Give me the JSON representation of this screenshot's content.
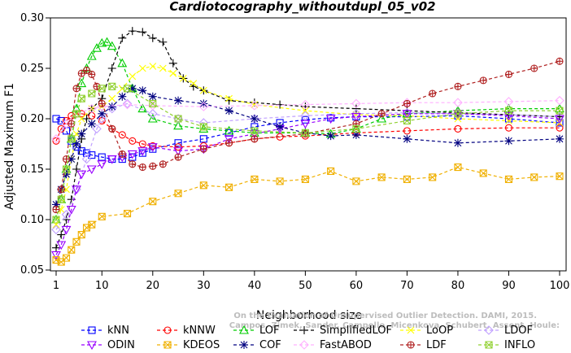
{
  "chart_data": {
    "type": "line",
    "title": "Cardiotocography_withoutdupl_05_v02",
    "xlabel": "Neighborhood size",
    "ylabel": "Adjusted Maximum F1",
    "xlim": [
      1,
      100
    ],
    "ylim": [
      0.05,
      0.3
    ],
    "xticks": [
      "1",
      "10",
      "20",
      "30",
      "40",
      "50",
      "60",
      "70",
      "80",
      "90",
      "100"
    ],
    "yticks": [
      "0.05",
      "0.10",
      "0.15",
      "0.20",
      "0.25",
      "0.30"
    ],
    "legend_placement": "bottom",
    "series": [
      {
        "name": "kNN",
        "color": "#0000ff",
        "marker": "square",
        "points": [
          [
            1,
            0.2
          ],
          [
            2,
            0.198
          ],
          [
            3,
            0.188
          ],
          [
            4,
            0.178
          ],
          [
            5,
            0.172
          ],
          [
            6,
            0.168
          ],
          [
            7,
            0.166
          ],
          [
            8,
            0.164
          ],
          [
            10,
            0.162
          ],
          [
            12,
            0.16
          ],
          [
            14,
            0.16
          ],
          [
            16,
            0.162
          ],
          [
            18,
            0.166
          ],
          [
            20,
            0.17
          ],
          [
            25,
            0.176
          ],
          [
            30,
            0.18
          ],
          [
            35,
            0.186
          ],
          [
            40,
            0.192
          ],
          [
            45,
            0.196
          ],
          [
            50,
            0.199
          ],
          [
            55,
            0.201
          ],
          [
            60,
            0.202
          ],
          [
            70,
            0.202
          ],
          [
            80,
            0.203
          ],
          [
            90,
            0.2
          ],
          [
            100,
            0.196
          ]
        ]
      },
      {
        "name": "kNNW",
        "color": "#ff0000",
        "marker": "circle",
        "points": [
          [
            1,
            0.178
          ],
          [
            2,
            0.19
          ],
          [
            3,
            0.198
          ],
          [
            4,
            0.203
          ],
          [
            5,
            0.205
          ],
          [
            6,
            0.205
          ],
          [
            8,
            0.203
          ],
          [
            10,
            0.198
          ],
          [
            12,
            0.19
          ],
          [
            14,
            0.184
          ],
          [
            16,
            0.178
          ],
          [
            18,
            0.175
          ],
          [
            20,
            0.173
          ],
          [
            25,
            0.172
          ],
          [
            30,
            0.173
          ],
          [
            35,
            0.176
          ],
          [
            40,
            0.18
          ],
          [
            45,
            0.182
          ],
          [
            50,
            0.183
          ],
          [
            60,
            0.186
          ],
          [
            70,
            0.188
          ],
          [
            80,
            0.19
          ],
          [
            90,
            0.191
          ],
          [
            100,
            0.191
          ]
        ]
      },
      {
        "name": "LOF",
        "color": "#00cc00",
        "marker": "triangle",
        "points": [
          [
            1,
            0.1
          ],
          [
            2,
            0.12
          ],
          [
            3,
            0.15
          ],
          [
            4,
            0.18
          ],
          [
            5,
            0.21
          ],
          [
            6,
            0.235
          ],
          [
            7,
            0.25
          ],
          [
            8,
            0.262
          ],
          [
            9,
            0.27
          ],
          [
            10,
            0.275
          ],
          [
            11,
            0.276
          ],
          [
            12,
            0.272
          ],
          [
            14,
            0.255
          ],
          [
            16,
            0.23
          ],
          [
            18,
            0.21
          ],
          [
            20,
            0.2
          ],
          [
            25,
            0.193
          ],
          [
            30,
            0.19
          ],
          [
            35,
            0.188
          ],
          [
            40,
            0.186
          ],
          [
            50,
            0.186
          ],
          [
            55,
            0.185
          ],
          [
            60,
            0.19
          ],
          [
            65,
            0.2
          ],
          [
            70,
            0.205
          ],
          [
            80,
            0.208
          ],
          [
            90,
            0.21
          ],
          [
            100,
            0.21
          ]
        ]
      },
      {
        "name": "SimplifiedLOF",
        "color": "#000000",
        "marker": "plus",
        "points": [
          [
            1,
            0.072
          ],
          [
            2,
            0.085
          ],
          [
            3,
            0.1
          ],
          [
            4,
            0.12
          ],
          [
            5,
            0.15
          ],
          [
            6,
            0.18
          ],
          [
            7,
            0.2
          ],
          [
            8,
            0.21
          ],
          [
            10,
            0.22
          ],
          [
            12,
            0.25
          ],
          [
            14,
            0.28
          ],
          [
            16,
            0.287
          ],
          [
            18,
            0.286
          ],
          [
            20,
            0.28
          ],
          [
            22,
            0.276
          ],
          [
            24,
            0.255
          ],
          [
            26,
            0.24
          ],
          [
            28,
            0.232
          ],
          [
            30,
            0.228
          ],
          [
            35,
            0.218
          ],
          [
            40,
            0.216
          ],
          [
            45,
            0.214
          ],
          [
            50,
            0.212
          ],
          [
            60,
            0.21
          ],
          [
            70,
            0.208
          ],
          [
            80,
            0.206
          ],
          [
            90,
            0.204
          ],
          [
            100,
            0.202
          ]
        ]
      },
      {
        "name": "LoOP",
        "color": "#ffff00",
        "marker": "x",
        "points": [
          [
            1,
            0.095
          ],
          [
            2,
            0.11
          ],
          [
            3,
            0.13
          ],
          [
            4,
            0.16
          ],
          [
            5,
            0.185
          ],
          [
            6,
            0.2
          ],
          [
            8,
            0.21
          ],
          [
            10,
            0.212
          ],
          [
            12,
            0.22
          ],
          [
            14,
            0.23
          ],
          [
            16,
            0.242
          ],
          [
            18,
            0.25
          ],
          [
            20,
            0.252
          ],
          [
            22,
            0.25
          ],
          [
            24,
            0.245
          ],
          [
            26,
            0.24
          ],
          [
            28,
            0.235
          ],
          [
            30,
            0.228
          ],
          [
            35,
            0.22
          ],
          [
            40,
            0.214
          ],
          [
            50,
            0.208
          ],
          [
            60,
            0.204
          ],
          [
            70,
            0.203
          ],
          [
            80,
            0.2
          ],
          [
            90,
            0.198
          ],
          [
            100,
            0.196
          ]
        ]
      },
      {
        "name": "LDOF",
        "color": "#c0a0ff",
        "marker": "diamond",
        "points": [
          [
            1,
            0.09
          ],
          [
            3,
            0.105
          ],
          [
            5,
            0.13
          ],
          [
            7,
            0.16
          ],
          [
            9,
            0.19
          ],
          [
            10,
            0.2
          ],
          [
            12,
            0.21
          ],
          [
            15,
            0.215
          ],
          [
            20,
            0.205
          ],
          [
            25,
            0.2
          ],
          [
            30,
            0.196
          ],
          [
            40,
            0.2
          ],
          [
            50,
            0.203
          ],
          [
            60,
            0.205
          ],
          [
            70,
            0.206
          ],
          [
            80,
            0.205
          ],
          [
            90,
            0.204
          ],
          [
            100,
            0.202
          ]
        ]
      },
      {
        "name": "ODIN",
        "color": "#9900ff",
        "marker": "triangle-down",
        "points": [
          [
            1,
            0.065
          ],
          [
            2,
            0.075
          ],
          [
            3,
            0.09
          ],
          [
            4,
            0.11
          ],
          [
            5,
            0.13
          ],
          [
            6,
            0.145
          ],
          [
            8,
            0.15
          ],
          [
            10,
            0.155
          ],
          [
            12,
            0.16
          ],
          [
            14,
            0.162
          ],
          [
            16,
            0.165
          ],
          [
            18,
            0.168
          ],
          [
            20,
            0.172
          ],
          [
            25,
            0.168
          ],
          [
            30,
            0.17
          ],
          [
            35,
            0.18
          ],
          [
            40,
            0.185
          ],
          [
            45,
            0.19
          ],
          [
            50,
            0.195
          ],
          [
            55,
            0.2
          ],
          [
            60,
            0.202
          ],
          [
            70,
            0.205
          ],
          [
            80,
            0.205
          ],
          [
            90,
            0.203
          ],
          [
            100,
            0.2
          ]
        ]
      },
      {
        "name": "KDEOS",
        "color": "#f0b000",
        "marker": "square-x",
        "points": [
          [
            1,
            0.06
          ],
          [
            2,
            0.058
          ],
          [
            3,
            0.062
          ],
          [
            4,
            0.07
          ],
          [
            5,
            0.078
          ],
          [
            6,
            0.085
          ],
          [
            7,
            0.092
          ],
          [
            8,
            0.095
          ],
          [
            10,
            0.103
          ],
          [
            15,
            0.106
          ],
          [
            20,
            0.118
          ],
          [
            25,
            0.126
          ],
          [
            30,
            0.134
          ],
          [
            35,
            0.132
          ],
          [
            40,
            0.14
          ],
          [
            45,
            0.138
          ],
          [
            50,
            0.14
          ],
          [
            55,
            0.148
          ],
          [
            60,
            0.138
          ],
          [
            65,
            0.142
          ],
          [
            70,
            0.14
          ],
          [
            75,
            0.142
          ],
          [
            80,
            0.152
          ],
          [
            85,
            0.146
          ],
          [
            90,
            0.14
          ],
          [
            95,
            0.142
          ],
          [
            100,
            0.143
          ]
        ]
      },
      {
        "name": "COF",
        "color": "#000080",
        "marker": "star",
        "points": [
          [
            1,
            0.115
          ],
          [
            2,
            0.13
          ],
          [
            3,
            0.145
          ],
          [
            4,
            0.16
          ],
          [
            5,
            0.175
          ],
          [
            6,
            0.185
          ],
          [
            8,
            0.195
          ],
          [
            10,
            0.205
          ],
          [
            12,
            0.212
          ],
          [
            14,
            0.222
          ],
          [
            16,
            0.23
          ],
          [
            18,
            0.228
          ],
          [
            20,
            0.222
          ],
          [
            25,
            0.218
          ],
          [
            30,
            0.215
          ],
          [
            35,
            0.208
          ],
          [
            40,
            0.2
          ],
          [
            45,
            0.192
          ],
          [
            50,
            0.186
          ],
          [
            55,
            0.183
          ],
          [
            60,
            0.184
          ],
          [
            70,
            0.18
          ],
          [
            80,
            0.176
          ],
          [
            90,
            0.178
          ],
          [
            100,
            0.18
          ]
        ]
      },
      {
        "name": "FastABOD",
        "color": "#ffb0ff",
        "marker": "diamond",
        "points": [
          [
            1,
            0.18
          ],
          [
            3,
            0.195
          ],
          [
            5,
            0.205
          ],
          [
            8,
            0.21
          ],
          [
            10,
            0.212
          ],
          [
            15,
            0.214
          ],
          [
            20,
            0.213
          ],
          [
            30,
            0.212
          ],
          [
            40,
            0.213
          ],
          [
            50,
            0.214
          ],
          [
            60,
            0.215
          ],
          [
            70,
            0.216
          ],
          [
            80,
            0.216
          ],
          [
            90,
            0.217
          ],
          [
            100,
            0.218
          ]
        ]
      },
      {
        "name": "LDF",
        "color": "#b02020",
        "marker": "circle-plus",
        "points": [
          [
            1,
            0.11
          ],
          [
            2,
            0.13
          ],
          [
            3,
            0.16
          ],
          [
            4,
            0.195
          ],
          [
            5,
            0.23
          ],
          [
            6,
            0.245
          ],
          [
            7,
            0.248
          ],
          [
            8,
            0.244
          ],
          [
            9,
            0.232
          ],
          [
            10,
            0.215
          ],
          [
            12,
            0.19
          ],
          [
            14,
            0.165
          ],
          [
            16,
            0.155
          ],
          [
            18,
            0.152
          ],
          [
            20,
            0.153
          ],
          [
            22,
            0.155
          ],
          [
            25,
            0.162
          ],
          [
            30,
            0.17
          ],
          [
            35,
            0.176
          ],
          [
            40,
            0.18
          ],
          [
            50,
            0.185
          ],
          [
            60,
            0.195
          ],
          [
            65,
            0.205
          ],
          [
            70,
            0.215
          ],
          [
            75,
            0.225
          ],
          [
            80,
            0.232
          ],
          [
            85,
            0.238
          ],
          [
            90,
            0.244
          ],
          [
            95,
            0.25
          ],
          [
            100,
            0.257
          ]
        ]
      },
      {
        "name": "INFLO",
        "color": "#90d030",
        "marker": "square-x",
        "points": [
          [
            1,
            0.1
          ],
          [
            2,
            0.12
          ],
          [
            3,
            0.15
          ],
          [
            4,
            0.18
          ],
          [
            5,
            0.205
          ],
          [
            6,
            0.22
          ],
          [
            8,
            0.225
          ],
          [
            10,
            0.23
          ],
          [
            12,
            0.232
          ],
          [
            15,
            0.23
          ],
          [
            20,
            0.215
          ],
          [
            25,
            0.2
          ],
          [
            30,
            0.192
          ],
          [
            40,
            0.188
          ],
          [
            50,
            0.186
          ],
          [
            60,
            0.19
          ],
          [
            70,
            0.198
          ],
          [
            80,
            0.205
          ],
          [
            90,
            0.208
          ],
          [
            100,
            0.208
          ]
        ]
      }
    ]
  },
  "watermark": "Campos, Zimek, Sander, Campello, Micenkova, Schubert, Assent, Houle: On the Evaluation of Unsupervised Outlier Detection. DAMI, 2015."
}
